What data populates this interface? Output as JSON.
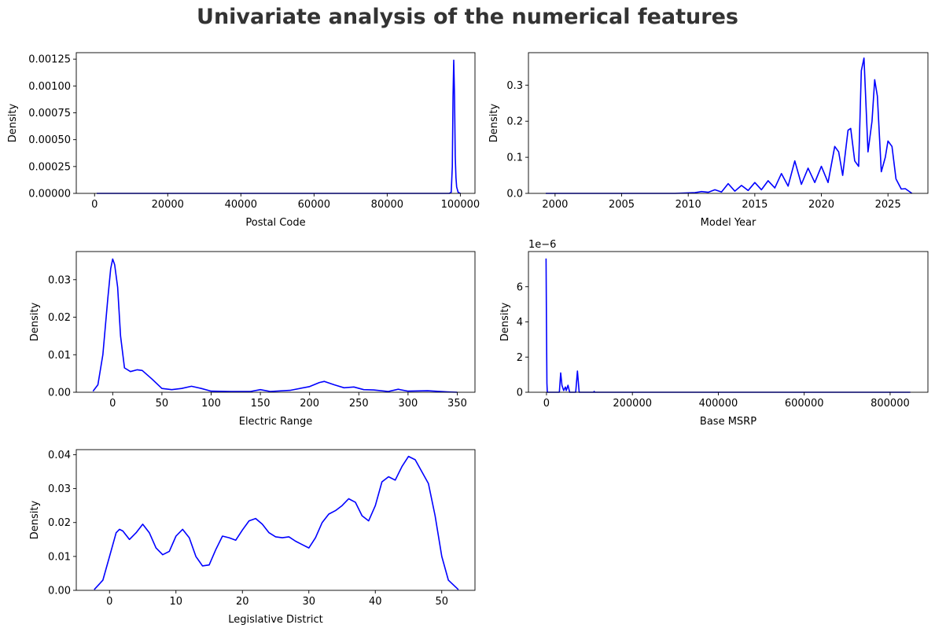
{
  "figure": {
    "suptitle": "Univariate analysis of the numerical features"
  },
  "chart_data": [
    {
      "type": "line",
      "xlabel": "Postal Code",
      "ylabel": "Density",
      "xlim": [
        -5000,
        104000
      ],
      "ylim": [
        0,
        0.00131
      ],
      "xticks": [
        0,
        20000,
        40000,
        60000,
        80000,
        100000
      ],
      "xticklabels": [
        "0",
        "20000",
        "40000",
        "60000",
        "80000",
        "100000"
      ],
      "yticks": [
        0,
        0.00025,
        0.0005,
        0.00075,
        0.001,
        0.00125
      ],
      "yticklabels": [
        "0.00000",
        "0.00025",
        "0.00050",
        "0.00075",
        "0.00100",
        "0.00125"
      ],
      "color": "#0000ff",
      "series": [
        {
          "x": [
            600,
            50000,
            97000,
            97500,
            97800,
            98000,
            98200,
            98400,
            98600,
            98800,
            99000,
            99400,
            100000
          ],
          "y": [
            0,
            0,
            0,
            1e-05,
            0.00025,
            0.0009,
            0.00124,
            0.0009,
            0.00035,
            0.00015,
            6e-05,
            1e-05,
            0
          ]
        }
      ]
    },
    {
      "type": "line",
      "xlabel": "Model Year",
      "ylabel": "Density",
      "xlim": [
        1998,
        2028
      ],
      "ylim": [
        0,
        0.39
      ],
      "xticks": [
        2000,
        2005,
        2010,
        2015,
        2020,
        2025
      ],
      "xticklabels": [
        "2000",
        "2005",
        "2010",
        "2015",
        "2020",
        "2025"
      ],
      "yticks": [
        0,
        0.1,
        0.2,
        0.3
      ],
      "yticklabels": [
        "0.0",
        "0.1",
        "0.2",
        "0.3"
      ],
      "color": "#0000ff",
      "series": [
        {
          "x": [
            1999.3,
            2009,
            2010.5,
            2011,
            2011.5,
            2012,
            2012.5,
            2013,
            2013.5,
            2014,
            2014.5,
            2015,
            2015.5,
            2016,
            2016.5,
            2017,
            2017.5,
            2018,
            2018.5,
            2019,
            2019.5,
            2020,
            2020.5,
            2021,
            2021.3,
            2021.6,
            2022,
            2022.2,
            2022.5,
            2022.8,
            2023,
            2023.2,
            2023.5,
            2023.8,
            2024,
            2024.2,
            2024.5,
            2024.8,
            2025,
            2025.3,
            2025.6,
            2026,
            2026.3,
            2026.8
          ],
          "y": [
            0,
            0,
            0.002,
            0.005,
            0.003,
            0.01,
            0.004,
            0.027,
            0.006,
            0.022,
            0.008,
            0.03,
            0.01,
            0.035,
            0.015,
            0.055,
            0.02,
            0.09,
            0.025,
            0.07,
            0.03,
            0.075,
            0.03,
            0.13,
            0.115,
            0.05,
            0.175,
            0.18,
            0.09,
            0.075,
            0.34,
            0.375,
            0.115,
            0.2,
            0.315,
            0.27,
            0.06,
            0.1,
            0.145,
            0.13,
            0.04,
            0.012,
            0.013,
            0
          ]
        }
      ]
    },
    {
      "type": "line",
      "xlabel": "Electric Range",
      "ylabel": "Density",
      "xlim": [
        -37,
        368
      ],
      "ylim": [
        0,
        0.0375
      ],
      "xticks": [
        0,
        50,
        100,
        150,
        200,
        250,
        300,
        350
      ],
      "xticklabels": [
        "0",
        "50",
        "100",
        "150",
        "200",
        "250",
        "300",
        "350"
      ],
      "yticks": [
        0,
        0.01,
        0.02,
        0.03
      ],
      "yticklabels": [
        "0.00",
        "0.01",
        "0.02",
        "0.03"
      ],
      "color": "#0000ff",
      "series": [
        {
          "x": [
            -20,
            -15,
            -10,
            -5,
            -2,
            0,
            2,
            5,
            8,
            12,
            18,
            25,
            30,
            40,
            50,
            60,
            70,
            80,
            90,
            100,
            120,
            140,
            150,
            160,
            180,
            200,
            210,
            215,
            225,
            235,
            245,
            255,
            265,
            280,
            290,
            300,
            320,
            340,
            350
          ],
          "y": [
            0.0003,
            0.002,
            0.01,
            0.025,
            0.033,
            0.0355,
            0.034,
            0.028,
            0.015,
            0.0065,
            0.0055,
            0.006,
            0.0058,
            0.0035,
            0.001,
            0.0007,
            0.001,
            0.0016,
            0.001,
            0.0003,
            0.0002,
            0.0002,
            0.0007,
            0.0002,
            0.0005,
            0.0015,
            0.0026,
            0.0029,
            0.002,
            0.0012,
            0.0014,
            0.0007,
            0.0006,
            0.0002,
            0.0008,
            0.0003,
            0.0004,
            0.0001,
            0
          ]
        }
      ]
    },
    {
      "type": "line",
      "xlabel": "Base MSRP",
      "ylabel": "Density",
      "yexponent": "1e−6",
      "xlim": [
        -42000,
        888000
      ],
      "ylim": [
        0,
        8e-06
      ],
      "xticks": [
        0,
        200000,
        400000,
        600000,
        800000
      ],
      "xticklabels": [
        "0",
        "200000",
        "400000",
        "600000",
        "800000"
      ],
      "yticks": [
        0,
        2e-06,
        4e-06,
        6e-06
      ],
      "yticklabels": [
        "0",
        "2",
        "4",
        "6"
      ],
      "color": "#0000ff",
      "series": [
        {
          "x": [
            -1000,
            0,
            1000,
            2000,
            30000,
            33000,
            36000,
            40000,
            44000,
            46000,
            50000,
            54000,
            58000,
            68000,
            72000,
            76000,
            80000,
            110000,
            111000,
            112000,
            200000,
            400000,
            600000,
            800000,
            847000
          ],
          "y": [
            7.6e-06,
            4e-06,
            5e-07,
            0,
            0,
            1.1e-06,
            4e-07,
            1e-07,
            3e-07,
            1e-07,
            4e-07,
            0,
            0,
            0,
            1.2e-06,
            0,
            0,
            0,
            5e-08,
            0,
            0,
            0,
            0,
            0,
            0
          ]
        }
      ]
    },
    {
      "type": "line",
      "xlabel": "Legislative District",
      "ylabel": "Density",
      "xlim": [
        -5,
        55
      ],
      "ylim": [
        0,
        0.0415
      ],
      "xticks": [
        0,
        10,
        20,
        30,
        40,
        50
      ],
      "xticklabels": [
        "0",
        "10",
        "20",
        "30",
        "40",
        "50"
      ],
      "yticks": [
        0,
        0.01,
        0.02,
        0.03,
        0.04
      ],
      "yticklabels": [
        "0.00",
        "0.01",
        "0.02",
        "0.03",
        "0.04"
      ],
      "color": "#0000ff",
      "series": [
        {
          "x": [
            -2.3,
            -1,
            0,
            1,
            1.5,
            2,
            3,
            4,
            5,
            6,
            7,
            8,
            9,
            10,
            11,
            12,
            13,
            14,
            15,
            16,
            17,
            18,
            19,
            20,
            21,
            22,
            23,
            24,
            25,
            26,
            27,
            28,
            29,
            30,
            31,
            32,
            33,
            34,
            35,
            36,
            37,
            38,
            39,
            40,
            41,
            42,
            43,
            44,
            45,
            46,
            47,
            48,
            49,
            50,
            51,
            52.5
          ],
          "y": [
            0.0002,
            0.003,
            0.01,
            0.017,
            0.018,
            0.0175,
            0.015,
            0.017,
            0.0195,
            0.017,
            0.0125,
            0.0105,
            0.0115,
            0.016,
            0.018,
            0.0155,
            0.01,
            0.0072,
            0.0075,
            0.012,
            0.016,
            0.0155,
            0.0148,
            0.0178,
            0.0205,
            0.0212,
            0.0195,
            0.017,
            0.0158,
            0.0155,
            0.0158,
            0.0145,
            0.0135,
            0.0125,
            0.0155,
            0.02,
            0.0225,
            0.0235,
            0.025,
            0.027,
            0.026,
            0.022,
            0.0205,
            0.025,
            0.032,
            0.0335,
            0.0325,
            0.0365,
            0.0395,
            0.0385,
            0.035,
            0.0315,
            0.022,
            0.01,
            0.003,
            0.0002
          ]
        }
      ]
    }
  ]
}
